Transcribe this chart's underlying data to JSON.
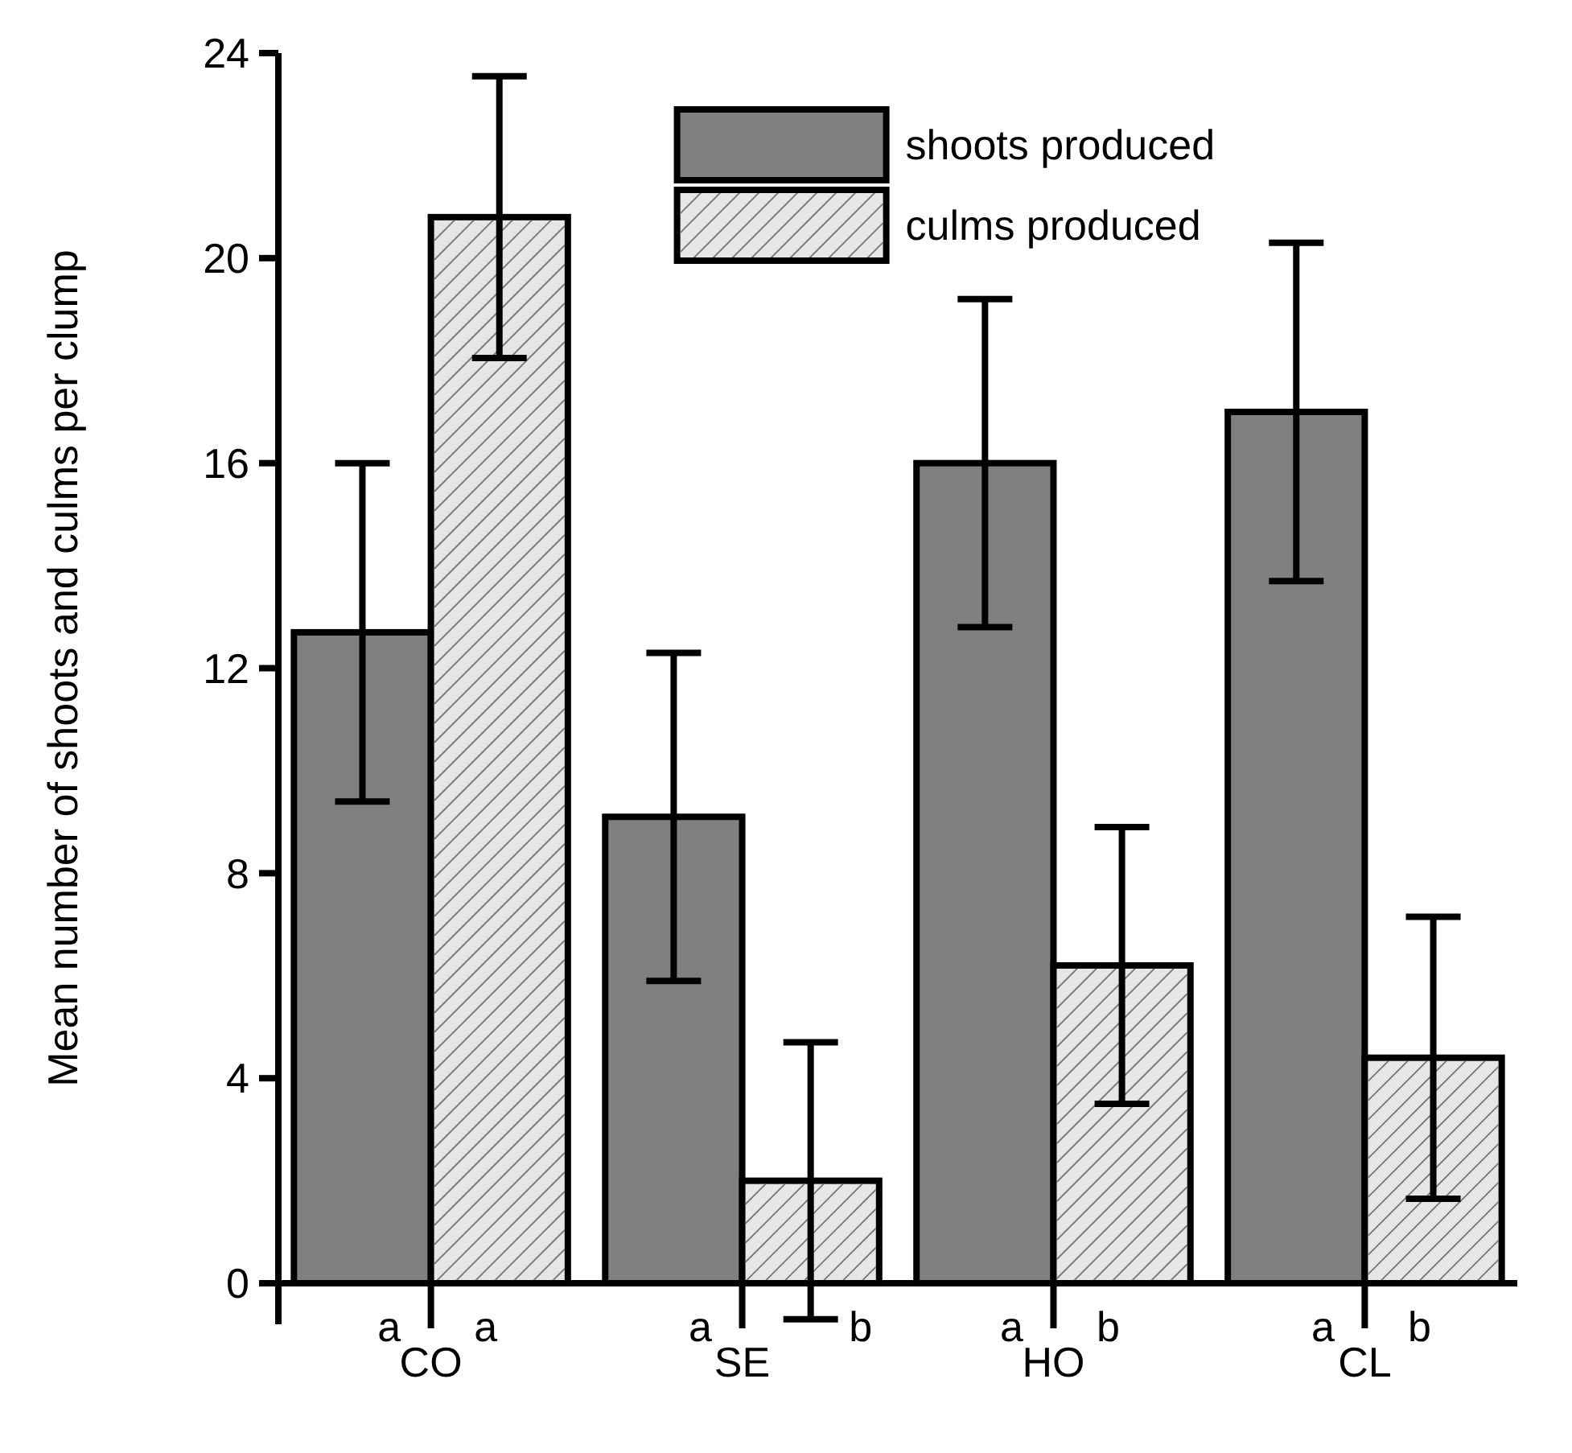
{
  "chart_data": {
    "type": "bar",
    "ylabel": "Mean number of shoots and culms per clump",
    "categories": [
      "CO",
      "SE",
      "HO",
      "CL"
    ],
    "series": [
      {
        "name": "shoots produced",
        "color": "#808080",
        "values": [
          12.7,
          9.1,
          16.0,
          17.0
        ],
        "errors": [
          3.3,
          3.2,
          3.2,
          3.3
        ]
      },
      {
        "name": "culms produced",
        "color": "#e6e6e6",
        "values": [
          20.8,
          2.0,
          6.2,
          4.4
        ],
        "errors": [
          2.75,
          2.7,
          2.7,
          2.75
        ]
      }
    ],
    "ylim": [
      -0.8,
      24
    ],
    "yticks": [
      0,
      4,
      8,
      12,
      16,
      20,
      24
    ],
    "grid": false,
    "legend": "top",
    "annotations": [
      "a",
      "a",
      "a",
      "b",
      "a",
      "b",
      "a",
      "b"
    ]
  }
}
